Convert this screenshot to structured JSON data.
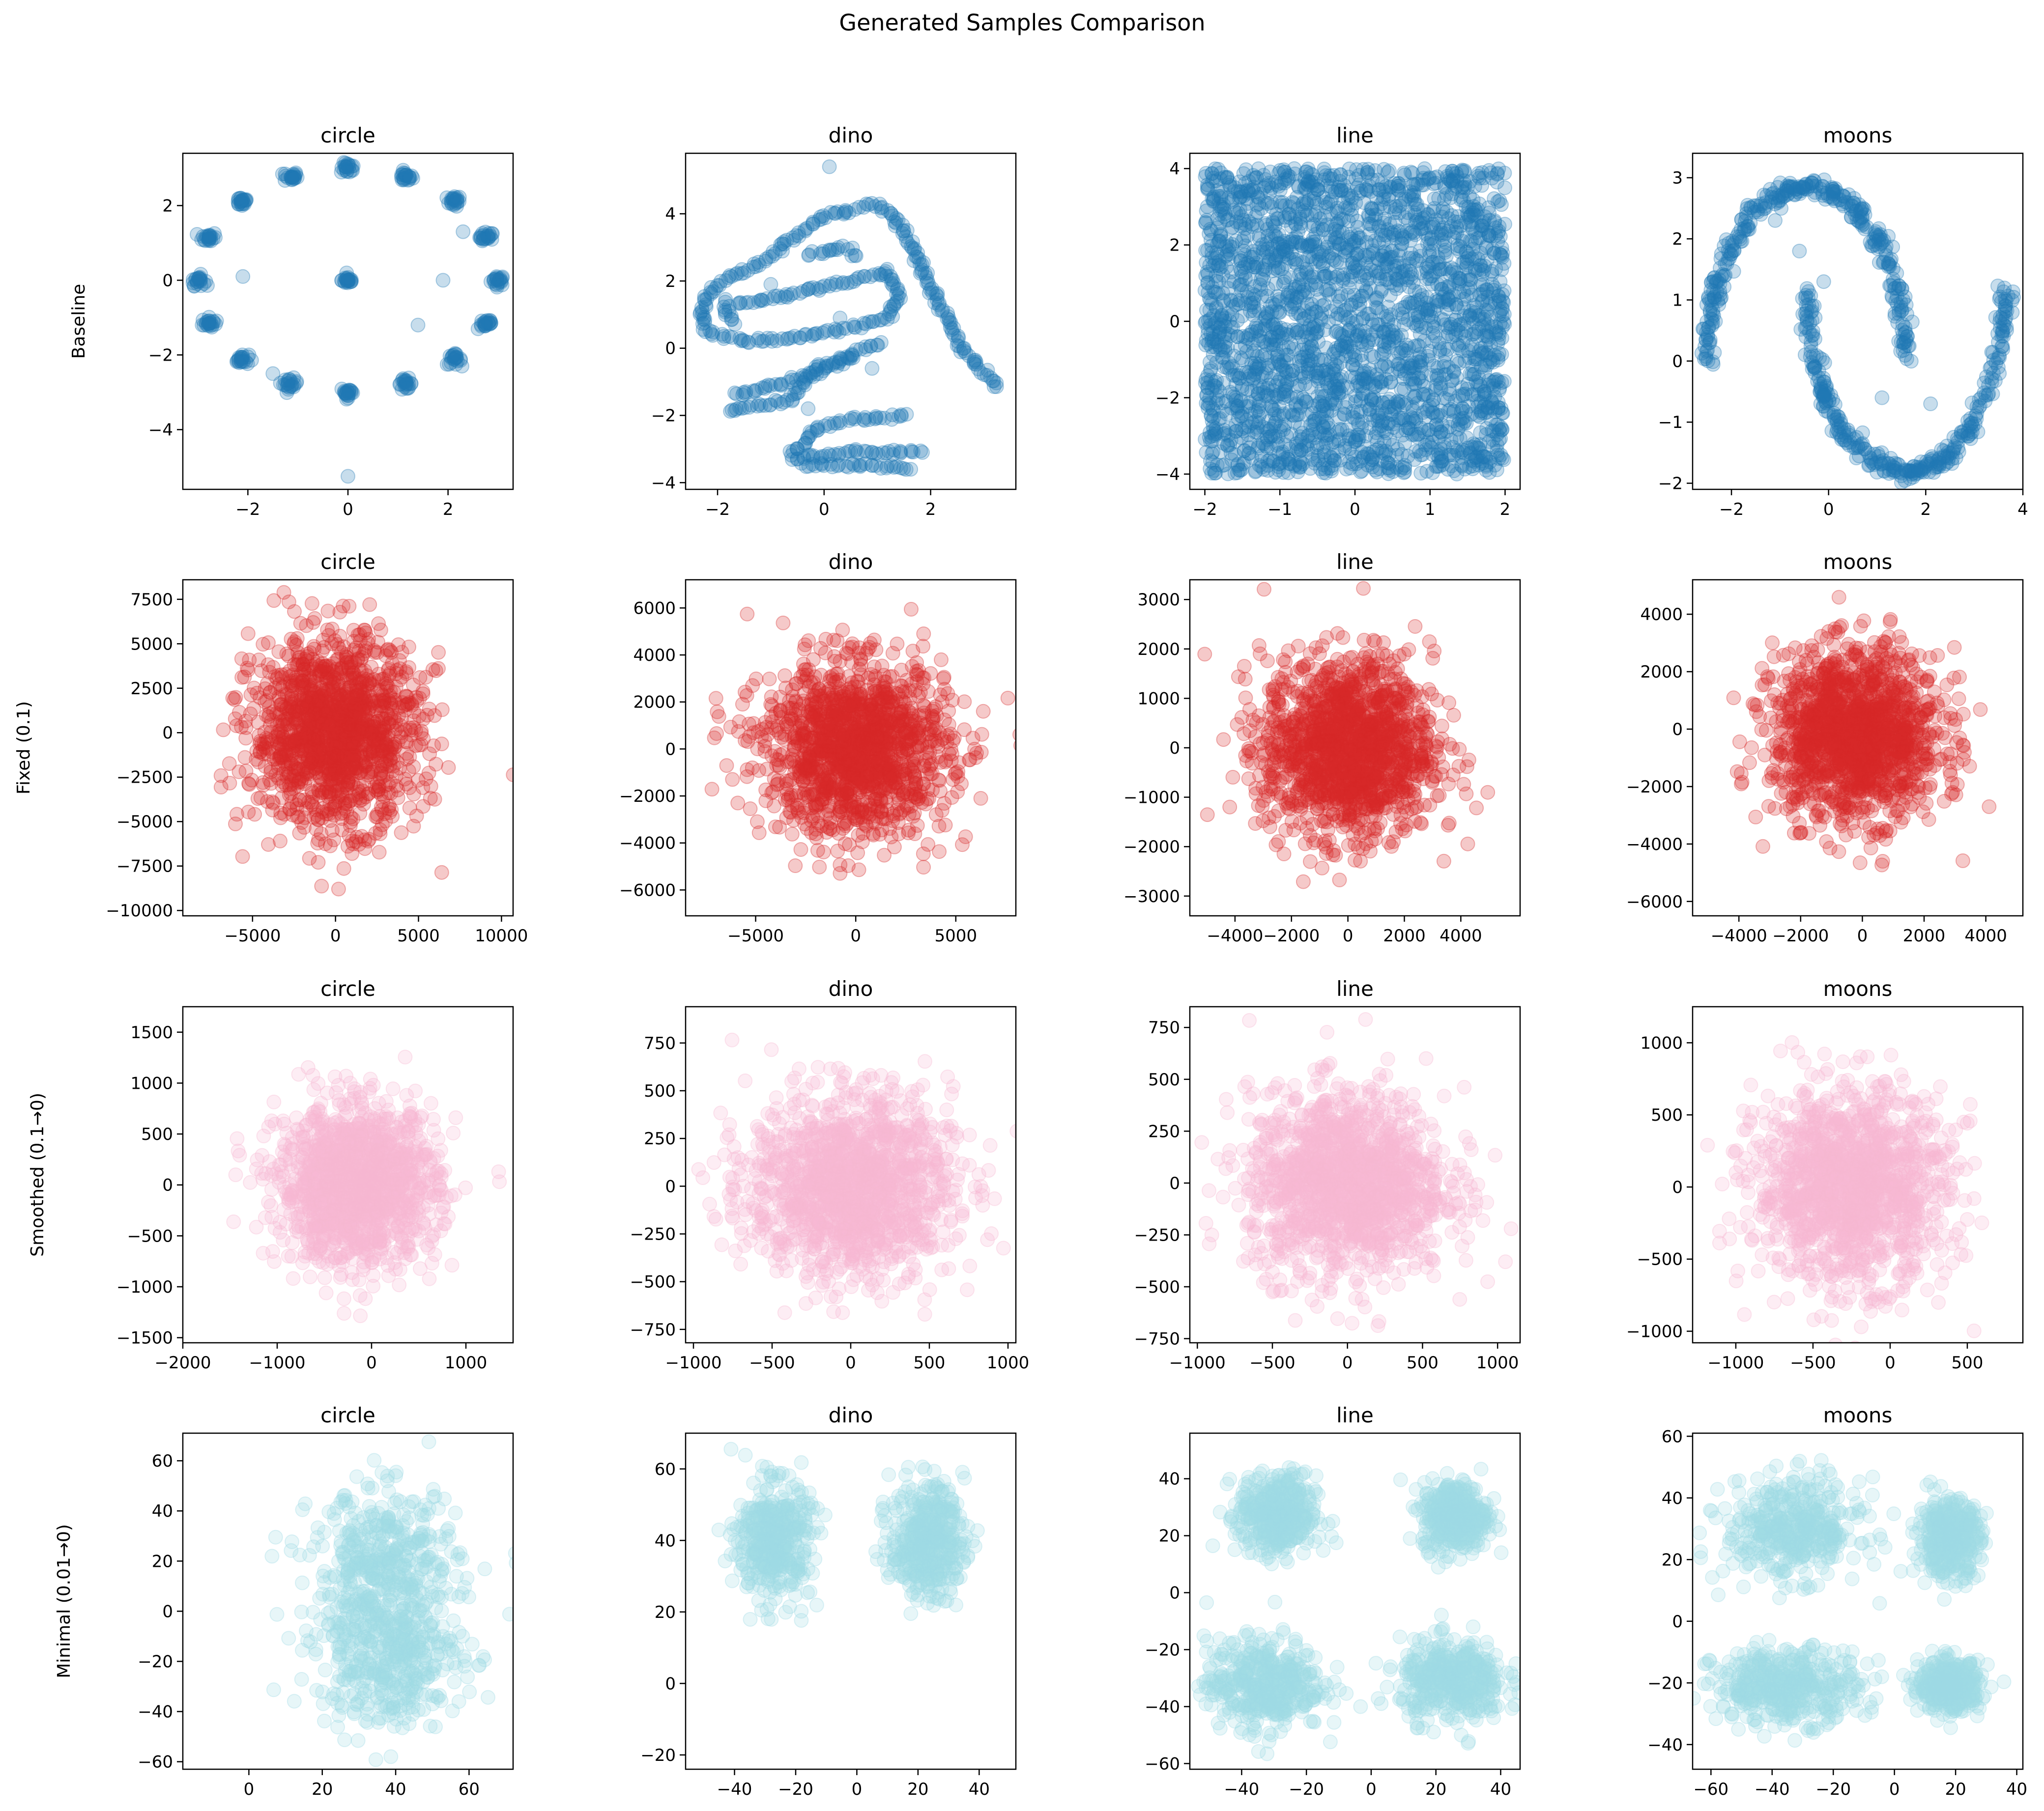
{
  "figure": {
    "title": "Generated Samples Comparison",
    "row_labels": [
      "Baseline",
      "Fixed (0.1)",
      "Smoothed (0.1→0)",
      "Minimal (0.01→0)"
    ],
    "col_titles": [
      "circle",
      "dino",
      "line",
      "moons"
    ]
  },
  "chart_data": [
    {
      "row": 0,
      "col": 0,
      "type": "scatter",
      "title": "circle",
      "ylabel": "Baseline",
      "color": "#1f77b4",
      "alpha": 0.25,
      "xlim": [
        -3.3,
        3.3
      ],
      "ylim": [
        -5.6,
        3.4
      ],
      "xticks": [
        -2,
        0,
        2
      ],
      "yticks": [
        -4,
        -2,
        0,
        2
      ],
      "pattern": "circle_clusters",
      "cluster_radius": 3.0,
      "n_clusters": 16
    },
    {
      "row": 0,
      "col": 1,
      "type": "scatter",
      "title": "dino",
      "color": "#1f77b4",
      "alpha": 0.25,
      "xlim": [
        -2.6,
        3.6
      ],
      "ylim": [
        -4.2,
        5.8
      ],
      "xticks": [
        -2,
        0,
        2
      ],
      "yticks": [
        -4,
        -2,
        0,
        2,
        4
      ],
      "pattern": "dino_outline",
      "paths": [
        [
          [
            -2.3,
            1
          ],
          [
            -2.2,
            1.6
          ],
          [
            -1.8,
            2.1
          ],
          [
            -1.3,
            2.4
          ],
          [
            -0.8,
            3
          ],
          [
            -0.4,
            3.5
          ],
          [
            0,
            3.9
          ],
          [
            0.5,
            4.1
          ],
          [
            0.9,
            4.3
          ],
          [
            1.3,
            4.0
          ],
          [
            1.6,
            3.2
          ],
          [
            1.9,
            2.2
          ],
          [
            2.2,
            1.2
          ],
          [
            2.6,
            0
          ],
          [
            3,
            -0.8
          ],
          [
            3.3,
            -1.2
          ]
        ],
        [
          [
            -2.3,
            1
          ],
          [
            -2.2,
            0.5
          ],
          [
            -1.5,
            0.2
          ],
          [
            -0.5,
            0.3
          ],
          [
            0.5,
            0.6
          ],
          [
            1.2,
            0.9
          ],
          [
            1.4,
            1.6
          ],
          [
            1.2,
            2.3
          ],
          [
            0.5,
            2.0
          ],
          [
            -0.2,
            1.8
          ],
          [
            -0.8,
            1.5
          ],
          [
            -1.7,
            1.3
          ]
        ],
        [
          [
            -1.7,
            -1.4
          ],
          [
            -1.2,
            -1.2
          ],
          [
            -0.5,
            -0.9
          ],
          [
            0.3,
            -0.3
          ],
          [
            1.1,
            0.2
          ]
        ],
        [
          [
            -1.8,
            -1.9
          ],
          [
            -1.3,
            -1.7
          ],
          [
            -0.7,
            -1.6
          ],
          [
            -0.4,
            -1.0
          ],
          [
            0,
            -0.6
          ],
          [
            0.6,
            -0.2
          ]
        ],
        [
          [
            -0.6,
            -3.2
          ],
          [
            -0.3,
            -2.6
          ],
          [
            0,
            -2.3
          ],
          [
            0.6,
            -2.1
          ],
          [
            1.6,
            -2.0
          ]
        ],
        [
          [
            -0.6,
            -3.3
          ],
          [
            0,
            -3.2
          ],
          [
            0.5,
            -3.1
          ],
          [
            1.1,
            -3.1
          ],
          [
            1.9,
            -3.1
          ]
        ],
        [
          [
            -0.4,
            -3.5
          ],
          [
            0.3,
            -3.5
          ],
          [
            1.0,
            -3.5
          ],
          [
            1.7,
            -3.6
          ]
        ],
        [
          [
            -0.3,
            2.8
          ],
          [
            0.4,
            3.0
          ],
          [
            0.6,
            2.7
          ]
        ],
        [
          [
            -1.9,
            1.4
          ],
          [
            -1.7,
            0.7
          ]
        ]
      ]
    },
    {
      "row": 0,
      "col": 2,
      "type": "scatter",
      "title": "line",
      "color": "#1f77b4",
      "alpha": 0.25,
      "xlim": [
        -2.2,
        2.2
      ],
      "ylim": [
        -4.4,
        4.4
      ],
      "xticks": [
        -2,
        -1,
        0,
        1,
        2
      ],
      "yticks": [
        -4,
        -2,
        0,
        2,
        4
      ],
      "pattern": "uniform_box",
      "box": [
        -2,
        2,
        -4,
        4
      ]
    },
    {
      "row": 0,
      "col": 3,
      "type": "scatter",
      "title": "moons",
      "color": "#1f77b4",
      "alpha": 0.25,
      "xlim": [
        -2.8,
        4.0
      ],
      "ylim": [
        -2.1,
        3.4
      ],
      "xticks": [
        -2,
        0,
        2,
        4
      ],
      "yticks": [
        -2,
        -1,
        0,
        1,
        2,
        3
      ],
      "pattern": "two_moons",
      "upper_moon": {
        "cx": -0.45,
        "cy": 0.0,
        "rx": 2.05,
        "ry": 2.85
      },
      "lower_moon": {
        "cx": 1.6,
        "cy": 1.2,
        "rx": 2.05,
        "ry": 3.0
      }
    },
    {
      "row": 1,
      "col": 0,
      "type": "scatter",
      "title": "circle",
      "ylabel": "Fixed (0.1)",
      "color": "#d62728",
      "alpha": 0.25,
      "xlim": [
        -9200,
        10700
      ],
      "ylim": [
        -10300,
        8600
      ],
      "xticks": [
        -5000,
        0,
        5000,
        10000
      ],
      "yticks": [
        -10000,
        -7500,
        -5000,
        -2500,
        0,
        2500,
        5000,
        7500
      ],
      "pattern": "gaussian",
      "mean": [
        0,
        0
      ],
      "std": [
        2500,
        2600
      ]
    },
    {
      "row": 1,
      "col": 1,
      "type": "scatter",
      "title": "dino",
      "color": "#d62728",
      "alpha": 0.25,
      "xlim": [
        -8500,
        8000
      ],
      "ylim": [
        -7100,
        7200
      ],
      "xticks": [
        -5000,
        0,
        5000
      ],
      "yticks": [
        -6000,
        -4000,
        -2000,
        0,
        2000,
        4000,
        6000
      ],
      "pattern": "gaussian",
      "mean": [
        0,
        0
      ],
      "std": [
        2300,
        1800
      ]
    },
    {
      "row": 1,
      "col": 2,
      "type": "scatter",
      "title": "line",
      "color": "#d62728",
      "alpha": 0.25,
      "xlim": [
        -5600,
        6100
      ],
      "ylim": [
        -3400,
        3400
      ],
      "xticks": [
        -4000,
        -2000,
        0,
        2000,
        4000
      ],
      "yticks": [
        -3000,
        -2000,
        -1000,
        0,
        1000,
        2000,
        3000
      ],
      "pattern": "gaussian",
      "mean": [
        0,
        0
      ],
      "std": [
        1500,
        900
      ]
    },
    {
      "row": 1,
      "col": 3,
      "type": "scatter",
      "title": "moons",
      "color": "#d62728",
      "alpha": 0.25,
      "xlim": [
        -5500,
        5200
      ],
      "ylim": [
        -6500,
        5200
      ],
      "xticks": [
        -4000,
        -2000,
        0,
        2000,
        4000
      ],
      "yticks": [
        -6000,
        -4000,
        -2000,
        0,
        2000,
        4000
      ],
      "pattern": "gaussian",
      "mean": [
        -200,
        -200
      ],
      "std": [
        1350,
        1450
      ]
    },
    {
      "row": 2,
      "col": 0,
      "type": "scatter",
      "title": "circle",
      "ylabel": "Smoothed (0.1→0)",
      "color": "#f7b6d2",
      "alpha": 0.25,
      "xlim": [
        -2000,
        1500
      ],
      "ylim": [
        -1550,
        1750
      ],
      "xticks": [
        -2000,
        -1000,
        0,
        1000
      ],
      "yticks": [
        -1500,
        -1000,
        -500,
        0,
        500,
        1000,
        1500
      ],
      "pattern": "gaussian",
      "mean": [
        -150,
        0
      ],
      "std": [
        420,
        380
      ]
    },
    {
      "row": 2,
      "col": 1,
      "type": "scatter",
      "title": "dino",
      "color": "#f7b6d2",
      "alpha": 0.25,
      "xlim": [
        -1050,
        1050
      ],
      "ylim": [
        -820,
        940
      ],
      "xticks": [
        -1000,
        -500,
        0,
        500,
        1000
      ],
      "yticks": [
        -750,
        -500,
        -250,
        0,
        250,
        500,
        750
      ],
      "pattern": "gaussian",
      "mean": [
        0,
        0
      ],
      "std": [
        320,
        240
      ]
    },
    {
      "row": 2,
      "col": 2,
      "type": "scatter",
      "title": "line",
      "color": "#f7b6d2",
      "alpha": 0.25,
      "xlim": [
        -1050,
        1150
      ],
      "ylim": [
        -770,
        850
      ],
      "xticks": [
        -1000,
        -500,
        0,
        500,
        1000
      ],
      "yticks": [
        -750,
        -500,
        -250,
        0,
        250,
        500,
        750
      ],
      "pattern": "gaussian",
      "mean": [
        0,
        0
      ],
      "std": [
        330,
        220
      ]
    },
    {
      "row": 2,
      "col": 3,
      "type": "scatter",
      "title": "moons",
      "color": "#f7b6d2",
      "alpha": 0.25,
      "xlim": [
        -1280,
        860
      ],
      "ylim": [
        -1080,
        1250
      ],
      "xticks": [
        -1000,
        -500,
        0,
        500
      ],
      "yticks": [
        -1000,
        -500,
        0,
        500,
        1000
      ],
      "pattern": "gaussian",
      "mean": [
        -250,
        0
      ],
      "std": [
        310,
        330
      ]
    },
    {
      "row": 3,
      "col": 0,
      "type": "scatter",
      "title": "circle",
      "ylabel": "Minimal (0.01→0)",
      "color": "#9edae5",
      "alpha": 0.25,
      "xlim": [
        -18,
        72
      ],
      "ylim": [
        -63,
        71
      ],
      "xticks": [
        0,
        20,
        40,
        60
      ],
      "yticks": [
        -60,
        -40,
        -20,
        0,
        20,
        40,
        60
      ],
      "pattern": "clusters",
      "clusters": [
        {
          "mean": [
            37,
            18
          ],
          "std": [
            10,
            15
          ]
        },
        {
          "mean": [
            38,
            -18
          ],
          "std": [
            10,
            14
          ]
        }
      ]
    },
    {
      "row": 3,
      "col": 1,
      "type": "scatter",
      "title": "dino",
      "color": "#9edae5",
      "alpha": 0.25,
      "xlim": [
        -56,
        52
      ],
      "ylim": [
        -24,
        70
      ],
      "xticks": [
        -40,
        -20,
        0,
        20,
        40
      ],
      "yticks": [
        -20,
        0,
        20,
        40,
        60
      ],
      "pattern": "clusters",
      "clusters": [
        {
          "mean": [
            -27,
            40
          ],
          "std": [
            6,
            8
          ]
        },
        {
          "mean": [
            23,
            40
          ],
          "std": [
            6,
            8
          ]
        }
      ]
    },
    {
      "row": 3,
      "col": 2,
      "type": "scatter",
      "title": "line",
      "color": "#9edae5",
      "alpha": 0.25,
      "xlim": [
        -56,
        46
      ],
      "ylim": [
        -62,
        56
      ],
      "xticks": [
        -40,
        -20,
        0,
        20,
        40
      ],
      "yticks": [
        -60,
        -40,
        -20,
        0,
        20,
        40
      ],
      "pattern": "clusters",
      "clusters": [
        {
          "mean": [
            -29,
            27
          ],
          "std": [
            6,
            7
          ]
        },
        {
          "mean": [
            26,
            27
          ],
          "std": [
            5,
            6
          ]
        },
        {
          "mean": [
            -33,
            -32
          ],
          "std": [
            9,
            8
          ]
        },
        {
          "mean": [
            25,
            -31
          ],
          "std": [
            8,
            7
          ]
        }
      ]
    },
    {
      "row": 3,
      "col": 3,
      "type": "scatter",
      "title": "moons",
      "color": "#9edae5",
      "alpha": 0.25,
      "xlim": [
        -66,
        42
      ],
      "ylim": [
        -48,
        61
      ],
      "xticks": [
        -60,
        -40,
        -20,
        0,
        20,
        40
      ],
      "yticks": [
        -40,
        -20,
        0,
        20,
        40,
        60
      ],
      "pattern": "clusters",
      "clusters": [
        {
          "mean": [
            -33,
            30
          ],
          "std": [
            11,
            8
          ]
        },
        {
          "mean": [
            -35,
            -21
          ],
          "std": [
            12,
            6
          ]
        },
        {
          "mean": [
            18,
            27
          ],
          "std": [
            5,
            6
          ]
        },
        {
          "mean": [
            18,
            -21
          ],
          "std": [
            5,
            4
          ]
        }
      ]
    }
  ]
}
